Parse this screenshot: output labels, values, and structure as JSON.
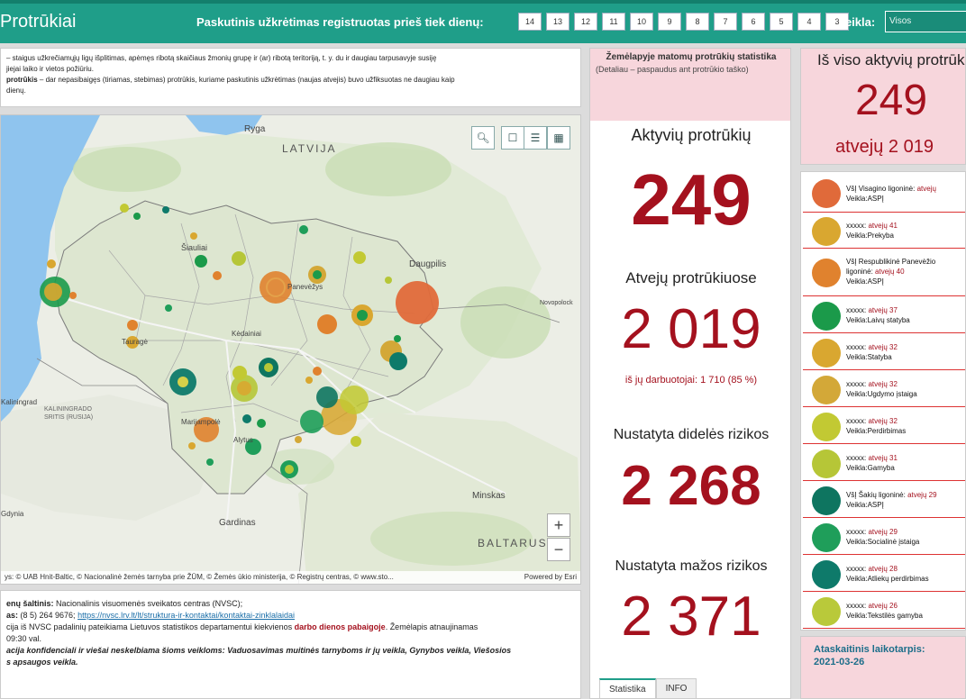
{
  "header": {
    "app_title": "Protrūkiai",
    "filter_label": "Paskutinis užkrėtimas registruotas prieš tiek dienų:",
    "day_buttons": [
      "14",
      "13",
      "12",
      "11",
      "10",
      "9",
      "8",
      "7",
      "6",
      "5",
      "4",
      "3"
    ],
    "activity_label": "Veikla:",
    "activity_value": "Visos"
  },
  "description": {
    "line1": "– staigus užkrečiamųjų ligų išplitimas, apėmęs ribotą skaičiaus žmonių grupę ir (ar) ribotą teritoriją, t. y. du ir daugiau tarpusavyje susiję",
    "line2": "jiejai laiko ir vietos požiūriu.",
    "line3_bold": "protrūkis",
    "line3": " – dar nepasibaigęs (tiriamas, stebimas) protrūkis, kuriame paskutinis užkrėtimas (naujas atvejis) buvo užfiksuotas ne daugiau kaip",
    "line4": "dienų."
  },
  "map": {
    "labels": {
      "riga": "Ryga",
      "latvija": "LATVIJA",
      "siauliai": "Šiauliai",
      "daugpilis": "Daugpilis",
      "panevezys": "Panevėžys",
      "kedainiai": "Kėdainiai",
      "taurage": "Tauragė",
      "kaliningrad": "KALININGRADO SRITIS (RUSIJA)",
      "kaliningrad_city": "Kaliningrad",
      "marijampole": "Marijampolė",
      "alytus": "Alytus",
      "minskas": "Minskas",
      "gardinas": "Gardinas",
      "baltarusija": "BALTARUSIJA",
      "novopolotsk": "Novopolock",
      "gdynia": "Gdynia"
    },
    "attribution": "ys: © UAB Hnit-Baltic, © Nacionalinė žemės tarnyba prie ŽŪM, © Žemės ūkio ministerija, © Registrų centras, © www.sto...",
    "powered": "Powered by Esri",
    "zoom_in": "+",
    "zoom_out": "−"
  },
  "footer": {
    "source_label": "enų šaltinis:",
    "source_text": " Nacionalinis visuomenės sveikatos centras (NVSC);",
    "phone_label": "as:",
    "phone_text": " (8 5) 264 9676; ",
    "link": "https://nvsc.lrv.lt/lt/struktura-ir-kontaktai/kontaktai-zinklalaidai",
    "line3": "cija iš NVSC padalinių pateikiama Lietuvos statistikos departamentui kiekvienos ",
    "line3_red": "darbo dienos pabaigoje",
    "line3_end": ". Žemėlapis atnaujinamas",
    "line4": " 09:30 val.",
    "line5": "acija konfidenciali ir viešai neskelbiama šioms veikloms:  Vaduosavimas muitinės tarnyboms ir jų veikla, Gynybos veikla, Viešosios",
    "line6": "s apsaugos veikla."
  },
  "stats": {
    "header_title": "Žemėlapyje matomų protrūkių statistika",
    "header_sub": "(Detaliau – paspaudus ant protrūkio taško)",
    "active_label": "Aktyvių protrūkių",
    "active_value": "249",
    "cases_label": "Atvejų protrūkiuose",
    "cases_value": "2 019",
    "cases_sub": "iš jų darbuotojai: 1 710 (85 %)",
    "high_label": "Nustatyta didelės rizikos",
    "high_value": "2 268",
    "low_label": "Nustatyta mažos rizikos",
    "low_value": "2 371",
    "tabs": [
      "Statistika",
      "INFO"
    ]
  },
  "total": {
    "title": "Iš viso aktyvių protrūkių",
    "value": "249",
    "cases": "atvejų 2 019"
  },
  "outbreaks": [
    {
      "name": "VšĮ Visagino ligoninė:",
      "cases": "atvejų",
      "activity": "Veikla:ASPĮ",
      "color": "#e06a3a"
    },
    {
      "name": "xxxxx:",
      "cases": "atvejų 41",
      "activity": "Veikla:Prekyba",
      "color": "#d9a730"
    },
    {
      "name": "VšĮ Respublikinė Panevėžio",
      "name2": "ligoninė:",
      "cases": "atvejų 40",
      "activity": "Veikla:ASPĮ",
      "color": "#e0822e"
    },
    {
      "name": "xxxxx:",
      "cases": "atvejų 37",
      "activity": "Veikla:Laivų statyba",
      "color": "#1b9a4a"
    },
    {
      "name": "xxxxx:",
      "cases": "atvejų 32",
      "activity": "Veikla:Statyba",
      "color": "#d9a730"
    },
    {
      "name": "xxxxx:",
      "cases": "atvejų 32",
      "activity": "Veikla:Ugdymo įstaiga",
      "color": "#d3a838"
    },
    {
      "name": "xxxxx:",
      "cases": "atvejų 32",
      "activity": "Veikla:Perdirbimas",
      "color": "#c2c933"
    },
    {
      "name": "xxxxx:",
      "cases": "atvejų 31",
      "activity": "Veikla:Gamyba",
      "color": "#b6c637"
    },
    {
      "name": "VšĮ Šakių ligoninė:",
      "cases": "atvejų 29",
      "activity": "Veikla:ASPĮ",
      "color": "#0e7560"
    },
    {
      "name": "xxxxx:",
      "cases": "atvejų 29",
      "activity": "Veikla:Socialinė įstaiga",
      "color": "#1f9e5a"
    },
    {
      "name": "xxxxx:",
      "cases": "atvejų 28",
      "activity": "Veikla:Atliekų perdirbimas",
      "color": "#0e7a6a"
    },
    {
      "name": "xxxxx:",
      "cases": "atvejų 26",
      "activity": "Veikla:Tekstilės gamyba",
      "color": "#b9c93a"
    }
  ],
  "period": {
    "label": "Ataskaitinis laikotarpis:",
    "value": "2021-03-26"
  },
  "colors": {
    "header": "#1f9e89",
    "accent_red": "#a4111e",
    "panel_pink": "#f7d6dc"
  }
}
